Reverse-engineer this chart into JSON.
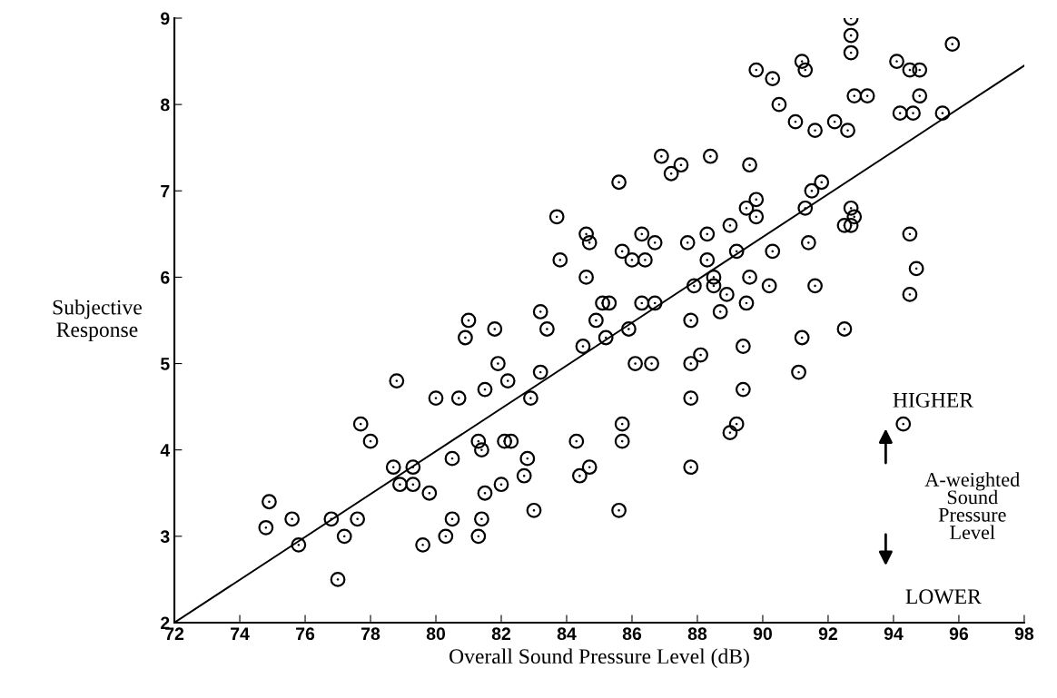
{
  "chart_data": {
    "type": "scatter",
    "xlabel": "Overall Sound Pressure Level (dB)",
    "ylabel": "Subjective\nResponse",
    "xlim": [
      72,
      98
    ],
    "xticks": [
      72,
      74,
      76,
      78,
      80,
      82,
      84,
      86,
      88,
      90,
      92,
      94,
      96,
      98
    ],
    "ylim": [
      2,
      9
    ],
    "yticks": [
      2,
      3,
      4,
      5,
      6,
      7,
      8,
      9
    ],
    "grid": false,
    "legend": false,
    "annotations": [
      "HIGHER",
      "A-weighted\nSound\nPressure\nLevel",
      "LOWER"
    ],
    "series": [
      {
        "marker": "circle",
        "color": "#000000",
        "x": [
          83.2,
          83.4,
          81.0,
          80.9,
          81.8,
          81.9,
          82.2,
          83.2,
          82.9,
          78.8,
          80.0,
          80.7,
          81.5,
          77.7,
          78.0,
          78.7,
          79.3,
          78.9,
          79.3,
          79.8,
          80.5,
          81.3,
          81.4,
          82.1,
          82.3,
          82.8,
          82.7,
          82.0,
          81.5,
          80.5,
          80.3,
          81.4,
          81.3,
          83.0,
          79.6,
          74.9,
          74.8,
          75.6,
          75.8,
          76.8,
          77.2,
          77.6,
          77.0,
          86.9,
          87.2,
          87.5,
          88.4,
          89.6,
          85.6,
          83.7,
          84.6,
          84.7,
          83.8,
          84.6,
          86.3,
          86.7,
          85.7,
          86.0,
          86.4,
          87.7,
          88.3,
          89.0,
          89.5,
          89.8,
          89.8,
          91.5,
          91.8,
          91.3,
          89.2,
          88.3,
          90.3,
          91.4,
          89.6,
          90.2,
          91.6,
          88.5,
          88.5,
          87.9,
          88.9,
          89.5,
          88.7,
          87.8,
          86.7,
          86.3,
          85.1,
          85.3,
          84.9,
          85.9,
          85.2,
          84.5,
          86.1,
          86.6,
          87.8,
          88.1,
          89.4,
          91.2,
          91.1,
          87.8,
          89.4,
          85.7,
          85.7,
          84.3,
          89.2,
          89.0,
          84.7,
          84.4,
          87.8,
          85.6,
          92.7,
          92.7,
          92.7,
          95.8,
          89.8,
          90.3,
          91.2,
          91.3,
          94.1,
          94.5,
          94.8,
          90.5,
          92.8,
          93.2,
          94.8,
          94.2,
          94.6,
          95.5,
          91.0,
          91.6,
          92.2,
          92.6,
          92.7,
          92.8,
          92.5,
          92.7,
          94.5,
          94.7,
          94.5,
          92.5,
          94.3
        ],
        "values": [
          5.6,
          5.4,
          5.5,
          5.3,
          5.4,
          5.0,
          4.8,
          4.9,
          4.6,
          4.8,
          4.6,
          4.6,
          4.7,
          4.3,
          4.1,
          3.8,
          3.8,
          3.6,
          3.6,
          3.5,
          3.9,
          4.1,
          4.0,
          4.1,
          4.1,
          3.9,
          3.7,
          3.6,
          3.5,
          3.2,
          3.0,
          3.2,
          3.0,
          3.3,
          2.9,
          3.4,
          3.1,
          3.2,
          2.9,
          3.2,
          3.0,
          3.2,
          2.5,
          7.4,
          7.2,
          7.3,
          7.4,
          7.3,
          7.1,
          6.7,
          6.5,
          6.4,
          6.2,
          6.0,
          6.5,
          6.4,
          6.3,
          6.2,
          6.2,
          6.4,
          6.5,
          6.6,
          6.8,
          6.9,
          6.7,
          7.0,
          7.1,
          6.8,
          6.3,
          6.2,
          6.3,
          6.4,
          6.0,
          5.9,
          5.9,
          6.0,
          5.9,
          5.9,
          5.8,
          5.7,
          5.6,
          5.5,
          5.7,
          5.7,
          5.7,
          5.7,
          5.5,
          5.4,
          5.3,
          5.2,
          5.0,
          5.0,
          5.0,
          5.1,
          5.2,
          5.3,
          4.9,
          4.6,
          4.7,
          4.3,
          4.1,
          4.1,
          4.3,
          4.2,
          3.8,
          3.7,
          3.8,
          3.3,
          9.0,
          8.8,
          8.6,
          8.7,
          8.4,
          8.3,
          8.5,
          8.4,
          8.5,
          8.4,
          8.4,
          8.0,
          8.1,
          8.1,
          8.1,
          7.9,
          7.9,
          7.9,
          7.8,
          7.7,
          7.8,
          7.7,
          6.8,
          6.7,
          6.6,
          6.6,
          6.5,
          6.1,
          5.8,
          5.4,
          4.3
        ]
      },
      {
        "type": "line",
        "marker": "none",
        "color": "#000000",
        "x": [
          72,
          98
        ],
        "values": [
          2,
          8.45
        ]
      }
    ]
  }
}
